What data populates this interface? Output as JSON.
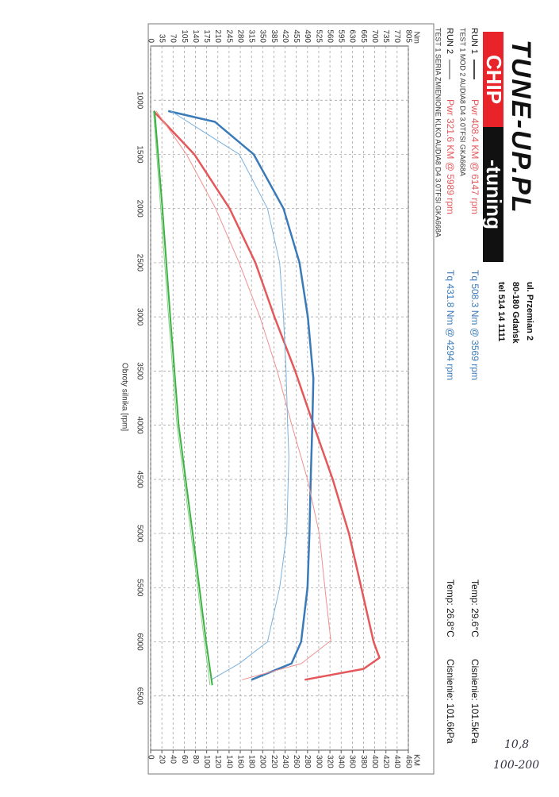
{
  "logo": {
    "brand": "TUNE-UP.PL",
    "chip": "CHIP",
    "tuning": "-tuning"
  },
  "address": [
    "ul. Przemian 2",
    "80-180 Gdańsk",
    "tel 514 14 1111"
  ],
  "runs": [
    {
      "label": "RUN 1",
      "power": "Pwr 408.4 KM @ 6147 rpm",
      "torque": "Tq 508.3 Nm @ 3569 rpm",
      "temp": "Temp: 29.6°C",
      "pressure": "Cisnienie: 101.5kPa",
      "test": "TEST 1 MOD 2 AUDIA8 D4 3.0TFSI GKA668A"
    },
    {
      "label": "RUN 2",
      "power": "Pwr 321.6 KM @ 5989 rpm",
      "torque": "Tq 431.8 Nm @ 4294 rpm",
      "temp": "Temp: 26.8°C",
      "pressure": "Cisnienie: 101.6kPa",
      "test": "TEST 1 SERIA ZMIENIONE KLKO AUDIA8 D4 3.0TFSI GKA668A"
    }
  ],
  "handwriting": [
    "10,8",
    "100-200"
  ],
  "chart_data": {
    "type": "line",
    "x_label": "Obroty silnika [rpm]",
    "y_label": "KM",
    "y2_label": "Nm",
    "xlim": [
      500,
      7000
    ],
    "xticks": [
      1000,
      1500,
      2000,
      2500,
      3000,
      3500,
      4000,
      4500,
      5000,
      5500,
      6000,
      6500
    ],
    "ylim": [
      0,
      460
    ],
    "yticks": [
      0,
      20,
      40,
      60,
      80,
      100,
      120,
      140,
      160,
      180,
      200,
      220,
      240,
      260,
      280,
      300,
      320,
      340,
      360,
      380,
      400,
      420,
      440,
      460
    ],
    "y2lim": [
      0,
      805
    ],
    "y2ticks": [
      0,
      35,
      70,
      105,
      140,
      175,
      210,
      245,
      280,
      315,
      350,
      385,
      420,
      455,
      490,
      525,
      560,
      595,
      630,
      665,
      700,
      735,
      770,
      805
    ],
    "grid": true,
    "series": [
      {
        "color": "#e4585b",
        "width": 2.5,
        "x": [
          1100,
          1500,
          2000,
          2500,
          3000,
          3500,
          4000,
          4500,
          5000,
          5500,
          6000,
          6147,
          6250,
          6350
        ],
        "values": [
          5,
          78,
          141,
          187,
          221,
          258,
          291,
          325,
          354,
          376,
          398,
          408.4,
          380,
          275
        ]
      },
      {
        "color": "#3a7ab8",
        "width": 2.5,
        "axis": "y2",
        "x": [
          1100,
          1200,
          1500,
          2000,
          2500,
          3000,
          3569,
          4000,
          4500,
          5000,
          5500,
          6000,
          6200,
          6350
        ],
        "values": [
          55,
          201,
          322,
          415,
          465,
          491,
          508.3,
          505,
          500,
          496,
          490,
          470,
          440,
          315
        ]
      },
      {
        "color": "#f09090",
        "width": 1,
        "x": [
          1100,
          1500,
          2000,
          2500,
          3000,
          3500,
          4000,
          4500,
          5000,
          5500,
          5989,
          6200,
          6350
        ],
        "values": [
          10,
          64,
          116,
          158,
          195,
          226,
          252,
          280,
          301,
          311,
          321.6,
          269,
          163
        ]
      },
      {
        "color": "#7ab0dd",
        "width": 1,
        "axis": "y2",
        "x": [
          1100,
          1500,
          2000,
          2500,
          3000,
          3500,
          4000,
          4294,
          5000,
          5500,
          6000,
          6200,
          6350
        ],
        "values": [
          63,
          277,
          365,
          403,
          415,
          423,
          428,
          431.8,
          425,
          403,
          365,
          277,
          189
        ]
      },
      {
        "color": "#3cb043",
        "width": 2,
        "x": [
          1100,
          2000,
          3000,
          4000,
          5000,
          6000,
          6400
        ],
        "values": [
          7,
          21,
          35,
          50,
          75,
          99,
          110
        ]
      },
      {
        "color": "#7fd07f",
        "width": 1,
        "x": [
          1100,
          2000,
          3000,
          4000,
          5000,
          6000,
          6400
        ],
        "values": [
          5,
          18,
          32,
          47,
          72,
          96,
          106
        ]
      }
    ]
  }
}
